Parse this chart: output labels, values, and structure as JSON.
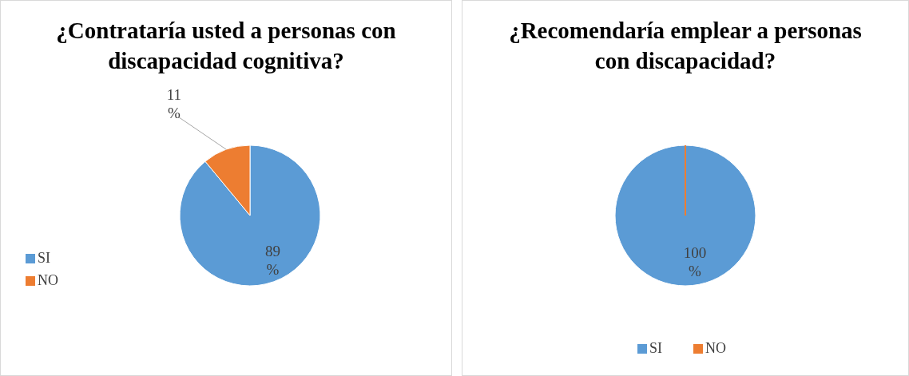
{
  "chart_data": [
    {
      "type": "pie",
      "title": "¿Contrataría usted a personas con discapacidad cognitiva?",
      "categories": [
        "SI",
        "NO"
      ],
      "values": [
        89,
        11
      ],
      "colors": [
        "#5b9bd5",
        "#ed7d31"
      ],
      "value_labels": [
        "89 %",
        "11 %"
      ],
      "legend": "left"
    },
    {
      "type": "pie",
      "title": "¿Recomendaría emplear a personas con discapacidad?",
      "categories": [
        "SI",
        "NO"
      ],
      "values": [
        100,
        0
      ],
      "colors": [
        "#5b9bd5",
        "#ed7d31"
      ],
      "value_labels": [
        "100 %",
        null
      ],
      "legend": "bottom"
    }
  ]
}
